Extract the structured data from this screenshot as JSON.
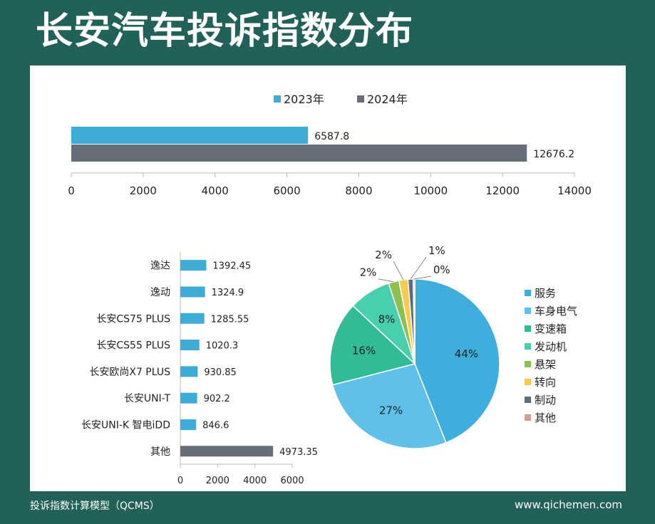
{
  "title": "长安汽车投诉指数分布",
  "footer": {
    "left": "投诉指数计算模型（QCMS）",
    "right": "www.qichemen.com"
  },
  "colors": {
    "background": "#226157",
    "panel": "#ffffff",
    "series_2023": "#3eacd9",
    "series_2024": "#666e7a"
  },
  "chart_data": [
    {
      "type": "bar",
      "orientation": "horizontal",
      "title": "",
      "legend_position": "top",
      "series": [
        {
          "name": "2023年",
          "values": [
            6587.8
          ],
          "value_labels": [
            "6587.8"
          ],
          "color": "#3eacd9"
        },
        {
          "name": "2024年",
          "values": [
            12676.2
          ],
          "value_labels": [
            "12676.2"
          ],
          "color": "#666e7a"
        }
      ],
      "xlim": [
        0,
        14000
      ],
      "xticks": [
        0,
        2000,
        4000,
        6000,
        8000,
        10000,
        12000,
        14000
      ],
      "grid": false
    },
    {
      "type": "bar",
      "orientation": "horizontal",
      "title": "",
      "categories": [
        "逸达",
        "逸动",
        "长安CS75 PLUS",
        "长安CS55 PLUS",
        "长安欧尚X7 PLUS",
        "长安UNI-T",
        "长安UNI-K 智电iDD",
        "其他"
      ],
      "values": [
        1392.45,
        1324.9,
        1285.55,
        1020.3,
        930.85,
        902.2,
        846.6,
        4973.35
      ],
      "value_labels": [
        "1392.45",
        "1324.9",
        "1285.55",
        "1020.3",
        "930.85",
        "902.2",
        "846.6",
        "4973.35"
      ],
      "bar_colors": [
        "#3eacd9",
        "#3eacd9",
        "#3eacd9",
        "#3eacd9",
        "#3eacd9",
        "#3eacd9",
        "#3eacd9",
        "#666e7a"
      ],
      "xlim": [
        0,
        6000
      ],
      "xticks": [
        0,
        2000,
        4000,
        6000
      ],
      "grid": false
    },
    {
      "type": "pie",
      "title": "",
      "legend_position": "right",
      "slices": [
        {
          "label": "服务",
          "value": 44,
          "text": "44%",
          "color": "#3eaedc"
        },
        {
          "label": "车身电气",
          "value": 27,
          "text": "27%",
          "color": "#5fc0ea"
        },
        {
          "label": "变速箱",
          "value": 16,
          "text": "16%",
          "color": "#32bb97"
        },
        {
          "label": "发动机",
          "value": 8,
          "text": "8%",
          "color": "#48cfae"
        },
        {
          "label": "悬架",
          "value": 2,
          "text": "2%",
          "color": "#8cc152"
        },
        {
          "label": "转向",
          "value": 1.7,
          "text": "2%",
          "color": "#f7cb4d"
        },
        {
          "label": "制动",
          "value": 1.0,
          "text": "1%",
          "color": "#5d6d7e"
        },
        {
          "label": "其他",
          "value": 0.3,
          "text": "0%",
          "color": "#d89a9a"
        }
      ]
    }
  ]
}
